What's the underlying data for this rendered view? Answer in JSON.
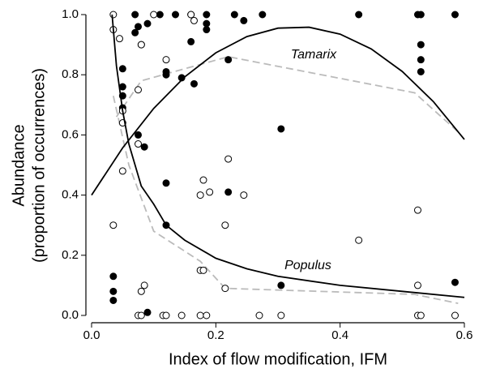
{
  "chart_data": {
    "type": "scatter",
    "x_label": "Index of flow modification, IFM",
    "y_label": [
      "Abundance",
      "(proportion of occurrences)"
    ],
    "xlim": [
      0,
      0.6
    ],
    "ylim": [
      0,
      1.0
    ],
    "xticks": [
      {
        "value": 0,
        "label": "0.0"
      },
      0.2,
      0.4,
      0.6
    ],
    "yticks": [
      {
        "value": 0,
        "label": "0.0"
      },
      0.2,
      0.4,
      0.6,
      0.8,
      {
        "value": 1,
        "label": "1.0"
      }
    ],
    "series": [
      {
        "marker": "filled",
        "color": "#000000",
        "x": [
          0.07,
          0.11,
          0.135,
          0.16,
          0.185,
          0.23,
          0.275,
          0.43,
          0.525,
          0.53,
          0.585,
          0.075,
          0.09,
          0.07,
          0.185,
          0.185,
          0.16,
          0.08,
          0.245,
          0.53,
          0.53,
          0.53,
          0.05,
          0.05,
          0.05,
          0.05,
          0.12,
          0.12,
          0.145,
          0.165,
          0.22,
          0.075,
          0.085,
          0.305,
          0.12,
          0.22,
          0.12,
          0.305,
          0.585,
          0.035,
          0.035,
          0.035,
          0.09
        ],
        "values": [
          1.0,
          1.0,
          1.0,
          1.0,
          1.0,
          1.0,
          1.0,
          1.0,
          1.0,
          1.0,
          1.0,
          0.96,
          0.97,
          0.94,
          0.97,
          0.95,
          0.91,
          0.9,
          0.98,
          0.9,
          0.85,
          0.81,
          0.82,
          0.76,
          0.73,
          0.69,
          0.81,
          0.8,
          0.79,
          0.77,
          0.85,
          0.6,
          0.56,
          0.62,
          0.44,
          0.41,
          0.3,
          0.1,
          0.11,
          0.13,
          0.08,
          0.05,
          0.01
        ]
      },
      {
        "marker": "open",
        "color": "#000000",
        "x": [
          0.035,
          0.1,
          0.16,
          0.165,
          0.035,
          0.045,
          0.08,
          0.12,
          0.075,
          0.05,
          0.05,
          0.075,
          0.05,
          0.22,
          0.18,
          0.175,
          0.19,
          0.245,
          0.035,
          0.215,
          0.525,
          0.43,
          0.175,
          0.18,
          0.215,
          0.525,
          0.085,
          0.08,
          0.075,
          0.08,
          0.115,
          0.12,
          0.145,
          0.175,
          0.185,
          0.27,
          0.305,
          0.525,
          0.53,
          0.585
        ],
        "values": [
          1.0,
          1.0,
          1.0,
          0.98,
          0.95,
          0.92,
          0.9,
          0.85,
          0.75,
          0.68,
          0.64,
          0.57,
          0.48,
          0.52,
          0.45,
          0.4,
          0.41,
          0.4,
          0.3,
          0.3,
          0.35,
          0.25,
          0.15,
          0.15,
          0.09,
          0.1,
          0.1,
          0.08,
          0,
          0,
          0,
          0,
          0,
          0,
          0,
          0,
          0,
          0,
          0,
          0
        ]
      },
      {
        "name": "Tamarix",
        "marker": "line",
        "color": "#000000",
        "x": [
          0,
          0.05,
          0.1,
          0.15,
          0.2,
          0.25,
          0.3,
          0.35,
          0.4,
          0.45,
          0.5,
          0.55,
          0.6
        ],
        "values": [
          0.4,
          0.557,
          0.688,
          0.793,
          0.873,
          0.927,
          0.955,
          0.958,
          0.935,
          0.886,
          0.811,
          0.711,
          0.585
        ]
      },
      {
        "name": "Populus",
        "marker": "line",
        "color": "#000000",
        "x": [
          0.033,
          0.04,
          0.05,
          0.06,
          0.08,
          0.1,
          0.12,
          0.15,
          0.2,
          0.25,
          0.3,
          0.4,
          0.5,
          0.6
        ],
        "values": [
          1.0,
          0.83,
          0.68,
          0.57,
          0.43,
          0.37,
          0.3,
          0.25,
          0.19,
          0.155,
          0.13,
          0.1,
          0.08,
          0.06
        ]
      },
      {
        "marker": "dashed",
        "color": "#bbbbbb",
        "x": [
          0.04,
          0.08,
          0.22,
          0.52,
          0.59
        ],
        "values": [
          0.66,
          0.78,
          0.86,
          0.74,
          0.61
        ]
      },
      {
        "marker": "dashed",
        "color": "#bbbbbb",
        "x": [
          0.035,
          0.06,
          0.1,
          0.175,
          0.215,
          0.52,
          0.59
        ],
        "values": [
          0.73,
          0.5,
          0.28,
          0.18,
          0.09,
          0.07,
          0.04
        ]
      }
    ]
  }
}
